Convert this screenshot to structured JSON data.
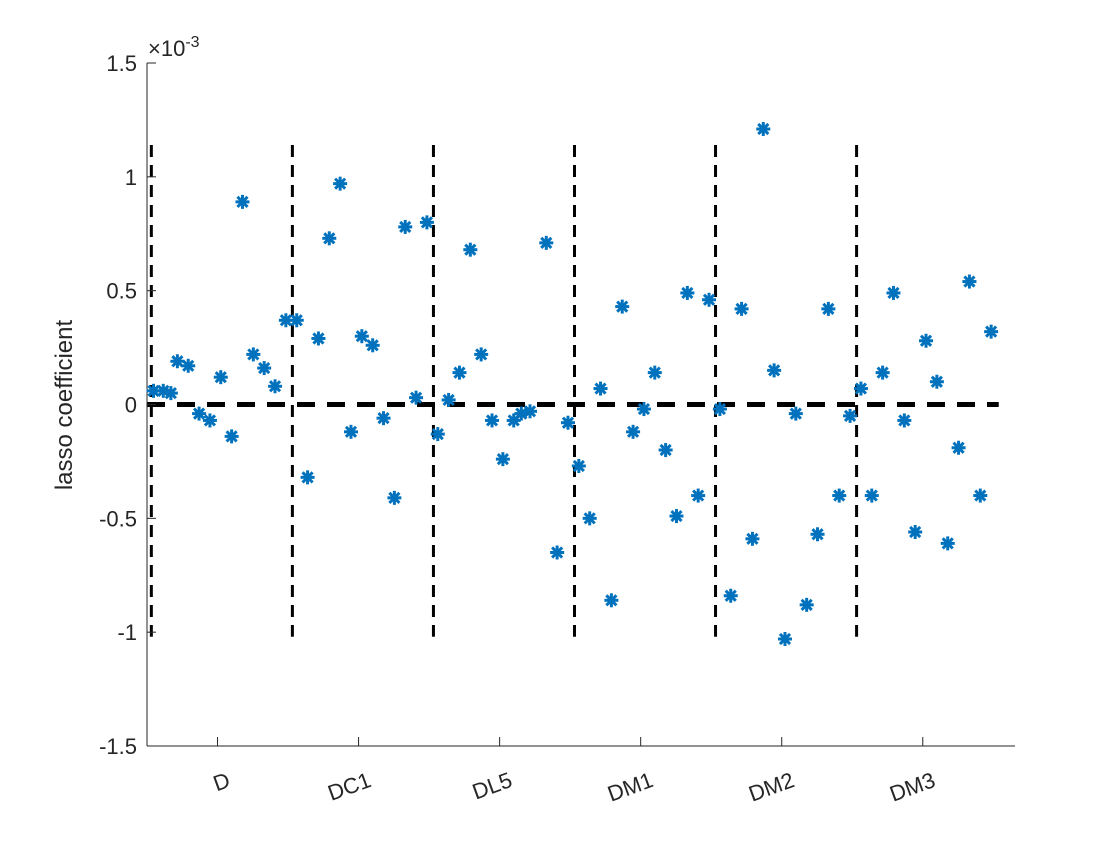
{
  "chart_data": {
    "type": "scatter",
    "ylabel": "lasso coefficient",
    "y_exponent_label": "×10-3",
    "y_exponent_base": "×10",
    "y_exponent_power": "-3",
    "ylim": [
      -1.5,
      1.5
    ],
    "y_ticks": [
      -1.5,
      -1,
      -0.5,
      0,
      0.5,
      1,
      1.5
    ],
    "y_tick_labels": [
      "-1.5",
      "-1",
      "-0.5",
      "0",
      "0.5",
      "1",
      "1.5"
    ],
    "x_tick_positions": [
      6.5,
      19.5,
      32.5,
      45.5,
      58.5,
      71.5
    ],
    "x_tick_labels": [
      "D",
      "DC1",
      "DL5",
      "DM1",
      "DM2",
      "DM3"
    ],
    "xlim": [
      0,
      80
    ],
    "divider_positions": [
      0.4,
      13.4,
      26.4,
      39.4,
      52.4,
      65.4
    ],
    "divider_y_range": [
      -1.02,
      1.14
    ],
    "zero_line": {
      "y": 0,
      "x_range": [
        0,
        78.5
      ]
    },
    "marker": "asterisk",
    "marker_color": "#0072BD",
    "divider_color": "#000000",
    "points": [
      [
        0.6,
        0.06
      ],
      [
        1.5,
        0.06
      ],
      [
        2.2,
        0.05
      ],
      [
        2.8,
        0.19
      ],
      [
        3.8,
        0.17
      ],
      [
        4.8,
        -0.04
      ],
      [
        5.8,
        -0.07
      ],
      [
        6.8,
        0.12
      ],
      [
        7.8,
        -0.14
      ],
      [
        8.8,
        0.89
      ],
      [
        9.8,
        0.22
      ],
      [
        10.8,
        0.16
      ],
      [
        11.8,
        0.08
      ],
      [
        12.8,
        0.37
      ],
      [
        13.8,
        0.37
      ],
      [
        14.8,
        -0.32
      ],
      [
        15.8,
        0.29
      ],
      [
        16.8,
        0.73
      ],
      [
        17.8,
        0.97
      ],
      [
        18.8,
        -0.12
      ],
      [
        19.8,
        0.3
      ],
      [
        20.8,
        0.26
      ],
      [
        21.8,
        -0.06
      ],
      [
        22.8,
        -0.41
      ],
      [
        23.8,
        0.78
      ],
      [
        24.8,
        0.03
      ],
      [
        25.8,
        0.8
      ],
      [
        26.8,
        -0.13
      ],
      [
        27.8,
        0.02
      ],
      [
        28.8,
        0.14
      ],
      [
        29.8,
        0.68
      ],
      [
        30.8,
        0.22
      ],
      [
        31.8,
        -0.07
      ],
      [
        32.8,
        -0.24
      ],
      [
        33.8,
        -0.07
      ],
      [
        34.5,
        -0.04
      ],
      [
        35.3,
        -0.03
      ],
      [
        36.8,
        0.71
      ],
      [
        37.8,
        -0.65
      ],
      [
        38.8,
        -0.08
      ],
      [
        39.8,
        -0.27
      ],
      [
        40.8,
        -0.5
      ],
      [
        41.8,
        0.07
      ],
      [
        42.8,
        -0.86
      ],
      [
        43.8,
        0.43
      ],
      [
        44.8,
        -0.12
      ],
      [
        45.8,
        -0.02
      ],
      [
        46.8,
        0.14
      ],
      [
        47.8,
        -0.2
      ],
      [
        48.8,
        -0.49
      ],
      [
        49.8,
        0.49
      ],
      [
        50.8,
        -0.4
      ],
      [
        51.8,
        0.46
      ],
      [
        52.8,
        -0.02
      ],
      [
        53.8,
        -0.84
      ],
      [
        54.8,
        0.42
      ],
      [
        55.8,
        -0.59
      ],
      [
        56.8,
        1.21
      ],
      [
        57.8,
        0.15
      ],
      [
        58.8,
        -1.03
      ],
      [
        59.8,
        -0.04
      ],
      [
        60.8,
        -0.88
      ],
      [
        61.8,
        -0.57
      ],
      [
        62.8,
        0.42
      ],
      [
        63.8,
        -0.4
      ],
      [
        64.8,
        -0.05
      ],
      [
        65.8,
        0.07
      ],
      [
        66.8,
        -0.4
      ],
      [
        67.8,
        0.14
      ],
      [
        68.8,
        0.49
      ],
      [
        69.8,
        -0.07
      ],
      [
        70.8,
        -0.56
      ],
      [
        71.8,
        0.28
      ],
      [
        72.8,
        0.1
      ],
      [
        73.8,
        -0.61
      ],
      [
        74.8,
        -0.19
      ],
      [
        75.8,
        0.54
      ],
      [
        76.8,
        -0.4
      ],
      [
        77.8,
        0.32
      ]
    ],
    "grid": false,
    "legend": "none"
  }
}
